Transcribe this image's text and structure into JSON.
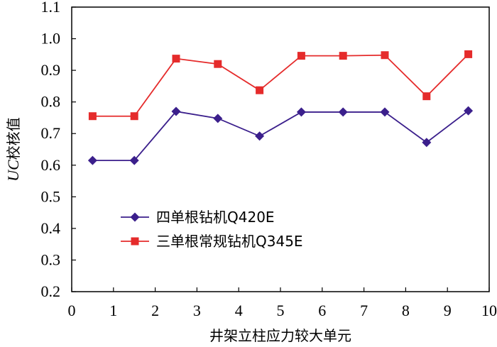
{
  "chart_data": {
    "type": "line",
    "xlabel": "井架立柱应力较大单元",
    "ylabel": "UC校核值",
    "ylabel_italic_part": "UC",
    "ylabel_rest": "校核值",
    "xlim": [
      0,
      10
    ],
    "ylim": [
      0.2,
      1.1
    ],
    "x_ticks": [
      "0",
      "1",
      "2",
      "3",
      "4",
      "5",
      "6",
      "7",
      "8",
      "9",
      "10"
    ],
    "y_ticks": [
      "0.2",
      "0.3",
      "0.4",
      "0.5",
      "0.6",
      "0.7",
      "0.8",
      "0.9",
      "1.0",
      "1.1"
    ],
    "grid": false,
    "legend_position": "center-left",
    "x": [
      0.5,
      1.5,
      2.5,
      3.5,
      4.5,
      5.5,
      6.5,
      7.5,
      8.5,
      9.5
    ],
    "series": [
      {
        "name": "四单根钻机Q420E",
        "color": "#3b1f8c",
        "marker": "diamond",
        "values": [
          0.615,
          0.615,
          0.77,
          0.748,
          0.692,
          0.768,
          0.768,
          0.768,
          0.672,
          0.772
        ]
      },
      {
        "name": "三单根常规钻机Q345E",
        "color": "#e52b2b",
        "marker": "square",
        "values": [
          0.755,
          0.755,
          0.937,
          0.92,
          0.837,
          0.946,
          0.946,
          0.948,
          0.818,
          0.951
        ]
      }
    ]
  }
}
